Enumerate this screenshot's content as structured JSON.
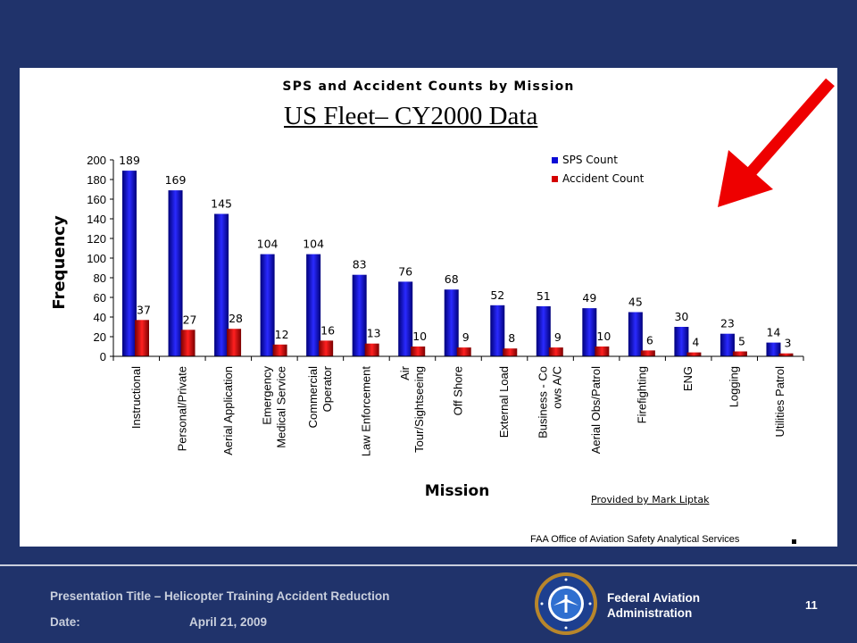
{
  "chart_data": {
    "type": "bar",
    "title": "SPS and Accident Counts by Mission",
    "subtitle": "US Fleet– CY2000 Data",
    "xlabel": "Mission",
    "ylabel": "Frequency",
    "ylim": [
      0,
      200
    ],
    "yticks": [
      0,
      20,
      40,
      60,
      80,
      100,
      120,
      140,
      160,
      180,
      200
    ],
    "legend_position": "top-right",
    "categories": [
      [
        "Instructional"
      ],
      [
        "Personal/Private"
      ],
      [
        "Aerial Application"
      ],
      [
        "Emergency",
        "Medical Service"
      ],
      [
        "Commercial",
        "Operator"
      ],
      [
        "Law Enforcement"
      ],
      [
        "Air",
        "Tour/Sightseeing"
      ],
      [
        "Off Shore"
      ],
      [
        "External Load"
      ],
      [
        "Business - Co",
        "ows A/C"
      ],
      [
        "Aerial Obs/Patrol"
      ],
      [
        "Firefighting"
      ],
      [
        "ENG"
      ],
      [
        "Logging"
      ],
      [
        "Utilities Patrol"
      ]
    ],
    "series": [
      {
        "name": "SPS Count",
        "color": "#0a0ad6",
        "values": [
          189,
          169,
          145,
          104,
          104,
          83,
          76,
          68,
          52,
          51,
          49,
          45,
          30,
          23,
          14
        ]
      },
      {
        "name": "Accident Count",
        "color": "#d40000",
        "values": [
          37,
          27,
          28,
          12,
          16,
          13,
          10,
          9,
          8,
          9,
          10,
          6,
          4,
          5,
          3
        ]
      }
    ]
  },
  "credit": "Provided by Mark Liptak",
  "source": "FAA Office of Aviation Safety Analytical Services",
  "footer": {
    "presentation_title": "Presentation Title – Helicopter Training Accident Reduction",
    "date_label": "Date:",
    "date_value": "April 21, 2009",
    "agency_line1": "Federal Aviation",
    "agency_line2": "Administration",
    "page_number": "11",
    "seal_icon": "faa-seal-icon"
  },
  "colors": {
    "background": "#20336b",
    "panel": "#ffffff",
    "arrow": "#ee0000",
    "footer_text": "#c9cfdd"
  }
}
